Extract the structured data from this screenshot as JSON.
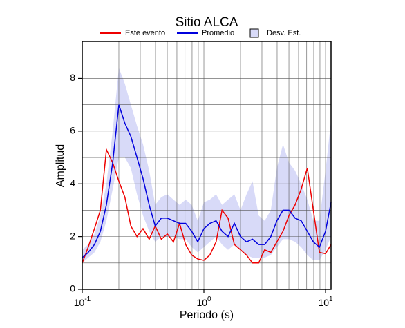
{
  "chart_data": {
    "type": "line",
    "title": "Sitio ALCA",
    "xlabel": "Periodo (s)",
    "ylabel": "Amplitud",
    "xscale": "log",
    "grid": true,
    "xlim": [
      0.1,
      11.1
    ],
    "ylim": [
      0,
      9.4
    ],
    "xticks": [
      {
        "value": 0.1,
        "label": "10^-1"
      },
      {
        "value": 1,
        "label": "10^0"
      },
      {
        "value": 10,
        "label": "10^1"
      }
    ],
    "minor_xticks": [
      0.2,
      0.3,
      0.4,
      0.5,
      0.6,
      0.7,
      0.8,
      0.9,
      2,
      3,
      4,
      5,
      6,
      7,
      8,
      9
    ],
    "yticks": [
      0,
      2,
      4,
      6,
      8
    ],
    "minor_yticks": [
      1,
      3,
      5,
      7,
      9
    ],
    "x": [
      0.1,
      0.112,
      0.126,
      0.141,
      0.158,
      0.178,
      0.2,
      0.224,
      0.251,
      0.282,
      0.316,
      0.355,
      0.398,
      0.447,
      0.501,
      0.562,
      0.631,
      0.708,
      0.794,
      0.891,
      1,
      1.12,
      1.26,
      1.41,
      1.58,
      1.78,
      2,
      2.24,
      2.51,
      2.82,
      3.16,
      3.55,
      3.98,
      4.47,
      5.01,
      5.62,
      6.31,
      7.08,
      7.94,
      8.91,
      10,
      11.1
    ],
    "series": [
      {
        "name": "Este evento",
        "color": "#ee0000",
        "values": [
          1.0,
          1.6,
          2.3,
          3.0,
          5.3,
          4.8,
          4.1,
          3.5,
          2.4,
          2.0,
          2.3,
          1.9,
          2.4,
          1.9,
          2.1,
          1.8,
          2.5,
          1.7,
          1.3,
          1.15,
          1.1,
          1.3,
          1.8,
          3.0,
          2.7,
          1.7,
          1.5,
          1.3,
          1.0,
          1.0,
          1.5,
          1.4,
          1.8,
          2.2,
          2.8,
          3.2,
          3.8,
          4.6,
          3.0,
          1.4,
          1.35,
          1.7
        ]
      },
      {
        "name": "Promedio",
        "color": "#0000dd",
        "values": [
          1.2,
          1.4,
          1.7,
          2.2,
          3.2,
          4.8,
          7.0,
          6.3,
          5.8,
          5.0,
          4.2,
          3.2,
          2.4,
          2.7,
          2.7,
          2.6,
          2.5,
          2.5,
          2.2,
          1.8,
          2.3,
          2.5,
          2.6,
          2.2,
          2.0,
          2.5,
          2.0,
          1.8,
          1.9,
          1.7,
          1.7,
          2.0,
          2.6,
          3.0,
          3.0,
          2.7,
          2.6,
          2.2,
          1.8,
          1.6,
          2.2,
          3.3
        ]
      }
    ],
    "band": {
      "name": "Desv. Est.",
      "color": "#d8daf8",
      "lower": [
        1.0,
        1.2,
        1.4,
        1.8,
        2.6,
        3.8,
        5.0,
        5.0,
        4.6,
        3.6,
        2.8,
        2.2,
        1.8,
        2.0,
        2.0,
        2.0,
        1.9,
        1.9,
        1.6,
        1.4,
        1.6,
        1.8,
        2.0,
        1.7,
        1.5,
        1.7,
        1.5,
        1.3,
        1.2,
        1.2,
        1.2,
        1.3,
        1.6,
        1.9,
        1.9,
        1.8,
        1.6,
        1.3,
        1.1,
        1.1,
        1.5,
        2.0
      ],
      "upper": [
        1.5,
        1.7,
        2.1,
        2.8,
        4.0,
        6.0,
        8.4,
        7.8,
        7.0,
        6.2,
        5.5,
        4.5,
        3.2,
        3.5,
        3.6,
        3.4,
        3.2,
        3.4,
        3.2,
        2.6,
        3.3,
        3.4,
        3.6,
        3.2,
        3.4,
        3.6,
        3.0,
        3.6,
        4.1,
        2.8,
        2.6,
        3.0,
        4.6,
        5.5,
        4.8,
        4.5,
        4.0,
        3.4,
        2.6,
        2.6,
        4.5,
        6.4
      ]
    }
  }
}
